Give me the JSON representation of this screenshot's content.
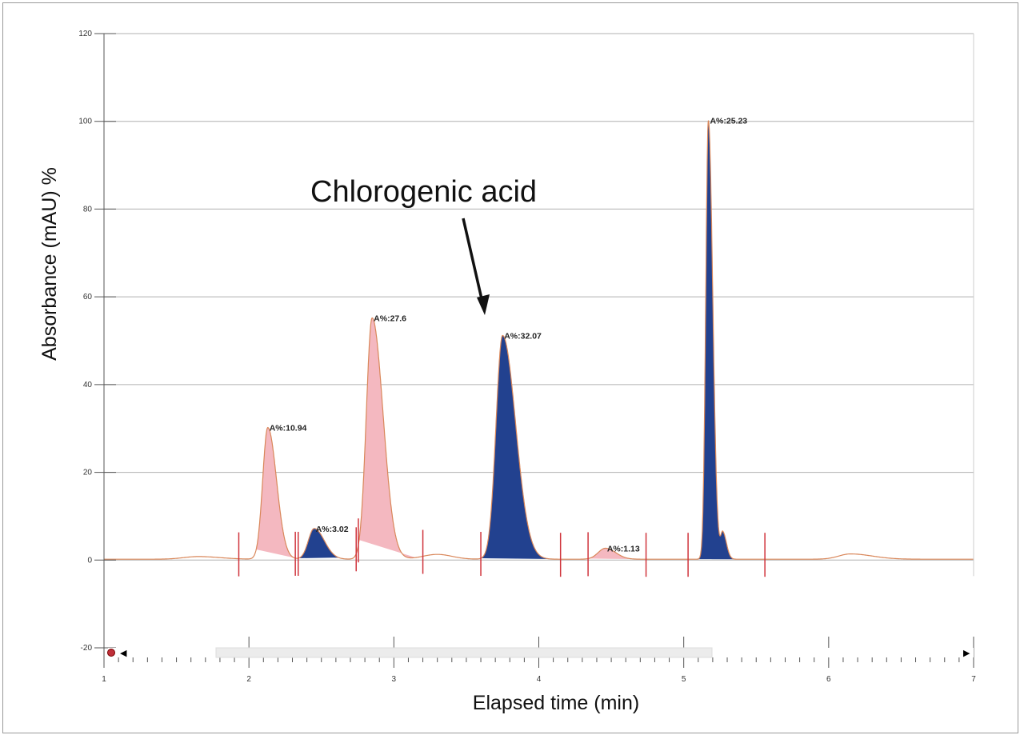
{
  "chart_data": {
    "type": "line",
    "title": "",
    "xlabel": "Elapsed time (min)",
    "ylabel": "Absorbance (mAU) %",
    "xlim": [
      1,
      7
    ],
    "ylim": [
      -20,
      120
    ],
    "xticks": [
      1,
      2,
      3,
      4,
      5,
      6,
      7
    ],
    "yticks": [
      -20,
      0,
      20,
      40,
      60,
      80,
      100,
      120
    ],
    "grid": "horizontal",
    "annotation": {
      "text": "Chlorogenic acid",
      "points_to_time": 3.7
    },
    "peaks": [
      {
        "time": 2.13,
        "height": 30,
        "label": "A%:10.94",
        "fill": "#f4b8c0",
        "range": [
          2.05,
          2.33
        ]
      },
      {
        "time": 2.45,
        "height": 7,
        "label": "A%:3.02",
        "fill": "#22418f",
        "range": [
          2.34,
          2.62
        ]
      },
      {
        "time": 2.85,
        "height": 55,
        "label": "A%:27.6",
        "fill": "#f4b8c0",
        "range": [
          2.76,
          3.15
        ]
      },
      {
        "time": 3.75,
        "height": 51,
        "label": "A%:32.07",
        "fill": "#22418f",
        "range": [
          3.6,
          4.1
        ]
      },
      {
        "time": 4.46,
        "height": 2.5,
        "label": "A%:1.13",
        "fill": "#f4b8c0",
        "range": [
          4.34,
          4.74
        ]
      },
      {
        "time": 5.17,
        "height": 100,
        "label": "A%:25.23",
        "fill": "#22418f",
        "range": [
          5.08,
          5.5
        ]
      }
    ],
    "integration_markers": [
      1.93,
      2.32,
      2.34,
      2.74,
      2.755,
      3.2,
      3.6,
      4.15,
      4.34,
      4.74,
      5.03,
      5.56
    ],
    "colors": {
      "trace": "#d9875a",
      "marker": "#d0343c",
      "grid": "#b0b0b0"
    }
  },
  "scrollbar": {
    "left_button": "◀",
    "right_button": "▶"
  }
}
